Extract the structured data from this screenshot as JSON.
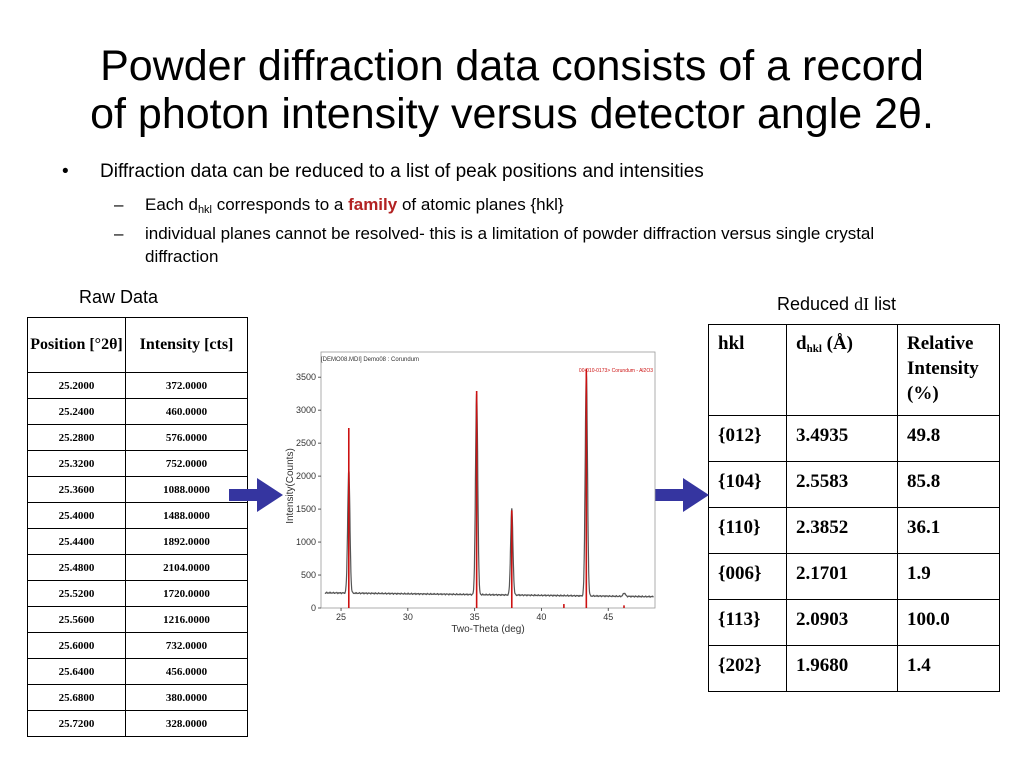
{
  "title": {
    "line1": "Powder diffraction data consists of a record",
    "line2": "of photon intensity versus detector angle 2θ."
  },
  "bullets": {
    "main_marker": "•",
    "main": "Diffraction data can be reduced to a list of peak positions and intensities",
    "sub_marker": "–",
    "sub1_pre": "Each d",
    "sub1_sub": "hkl",
    "sub1_mid": " corresponds to a ",
    "sub1_emph": "family",
    "sub1_post": " of atomic planes {hkl}",
    "sub2": "individual planes cannot be resolved- this is a limitation of powder diffraction versus single crystal diffraction"
  },
  "raw_data": {
    "caption": "Raw Data",
    "headers": [
      "Position [°2θ]",
      "Intensity [cts]"
    ],
    "rows": [
      [
        "25.2000",
        "372.0000"
      ],
      [
        "25.2400",
        "460.0000"
      ],
      [
        "25.2800",
        "576.0000"
      ],
      [
        "25.3200",
        "752.0000"
      ],
      [
        "25.3600",
        "1088.0000"
      ],
      [
        "25.4000",
        "1488.0000"
      ],
      [
        "25.4400",
        "1892.0000"
      ],
      [
        "25.4800",
        "2104.0000"
      ],
      [
        "25.5200",
        "1720.0000"
      ],
      [
        "25.5600",
        "1216.0000"
      ],
      [
        "25.6000",
        "732.0000"
      ],
      [
        "25.6400",
        "456.0000"
      ],
      [
        "25.6800",
        "380.0000"
      ],
      [
        "25.7200",
        "328.0000"
      ]
    ]
  },
  "reduced": {
    "caption_pre": "Reduced ",
    "caption_var": "dI",
    "caption_post": " list",
    "headers": {
      "hkl": "hkl",
      "d_pre": "d",
      "d_sub": "hkl",
      "d_post": " (Å)",
      "rel": "Relative Intensity (%)"
    },
    "rows": [
      [
        "{012}",
        "3.4935",
        "49.8"
      ],
      [
        "{104}",
        "2.5583",
        "85.8"
      ],
      [
        "{110}",
        "2.3852",
        "36.1"
      ],
      [
        "{006}",
        "2.1701",
        "1.9"
      ],
      [
        "{113}",
        "2.0903",
        "100.0"
      ],
      [
        "{202}",
        "1.9680",
        "1.4"
      ]
    ]
  },
  "colors": {
    "arrow": "#3535a0",
    "measured": "#555555",
    "reference": "#cc1111",
    "label_red": "#b22222"
  },
  "chart_data": {
    "type": "line",
    "title": "[DEMO08.MDI] Demo08 : Corundum",
    "legend": "00-010-0173> Corundum - Al2O3",
    "legend_position": "top-right",
    "xlabel": "Two-Theta (deg)",
    "ylabel": "Intensity(Counts)",
    "xlim": [
      23.5,
      48.5
    ],
    "ylim": [
      0,
      3700
    ],
    "xticks": [
      25,
      30,
      35,
      40,
      45
    ],
    "yticks": [
      0,
      500,
      1000,
      1500,
      2000,
      2500,
      3000,
      3500
    ],
    "baseline": 230,
    "series": [
      {
        "name": "measured",
        "peaks": [
          {
            "x": 25.58,
            "y": 2100,
            "w": 0.12
          },
          {
            "x": 35.15,
            "y": 3280,
            "w": 0.12
          },
          {
            "x": 37.78,
            "y": 1540,
            "w": 0.12
          },
          {
            "x": 43.36,
            "y": 3620,
            "w": 0.12
          },
          {
            "x": 46.2,
            "y": 280,
            "w": 0.12
          }
        ]
      },
      {
        "name": "00-010-0173> Corundum - Al2O3",
        "sticks": [
          {
            "x": 25.58,
            "y": 2730
          },
          {
            "x": 35.15,
            "y": 3290
          },
          {
            "x": 37.78,
            "y": 1480
          },
          {
            "x": 41.68,
            "y": 60
          },
          {
            "x": 43.36,
            "y": 3630
          },
          {
            "x": 46.18,
            "y": 40
          }
        ]
      }
    ]
  }
}
